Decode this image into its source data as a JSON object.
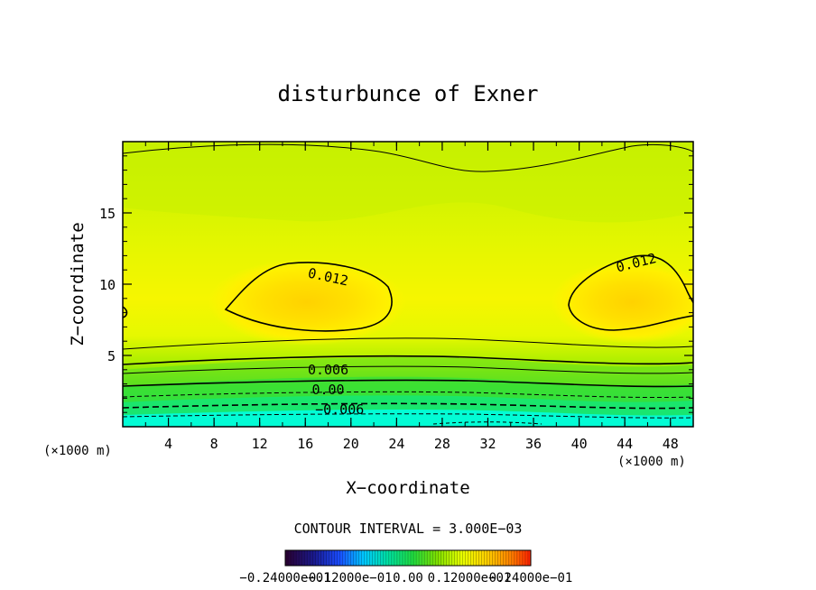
{
  "chart_data": {
    "type": "contour",
    "title": "disturbunce of Exner",
    "xlabel": "X−coordinate",
    "ylabel": "Z−coordinate",
    "x_unit": "(×1000 m)",
    "y_unit": "(×1000 m)",
    "xlim": [
      0,
      50
    ],
    "ylim": [
      0,
      20
    ],
    "xticks": [
      "4",
      "8",
      "12",
      "16",
      "20",
      "24",
      "28",
      "32",
      "36",
      "40",
      "44",
      "48"
    ],
    "yticks": [
      "5",
      "10",
      "15"
    ],
    "contour_interval_text": "CONTOUR INTERVAL = 3.000E−03",
    "contour_labels": [
      {
        "text": "0.012",
        "x": 18,
        "z": 10.5
      },
      {
        "text": "0.012",
        "x": 45,
        "z": 11.5
      },
      {
        "text": "0.006",
        "x": 18,
        "z": 4.0
      },
      {
        "text": "0.00",
        "x": 18,
        "z": 2.6
      },
      {
        "text": "−0.006",
        "x": 19,
        "z": 1.2
      }
    ],
    "colorbar_labels": [
      "−0.24000e−01",
      "−0.12000e−01",
      "0.00",
      "0.12000e−01",
      "0.24000e−01"
    ],
    "colormap": [
      "#2a0030",
      "#1a1a90",
      "#1a4cff",
      "#00c8ff",
      "#00e0a0",
      "#20dc40",
      "#80e000",
      "#e8ff00",
      "#ffd000",
      "#ff8000",
      "#ff2000"
    ],
    "field_colors": [
      "#00ffe6",
      "#00f0c0",
      "#10e880",
      "#28e040",
      "#60e020",
      "#a0ec00",
      "#c8f200",
      "#e0f800",
      "#f4f400",
      "#ffe800",
      "#ffd800"
    ]
  }
}
